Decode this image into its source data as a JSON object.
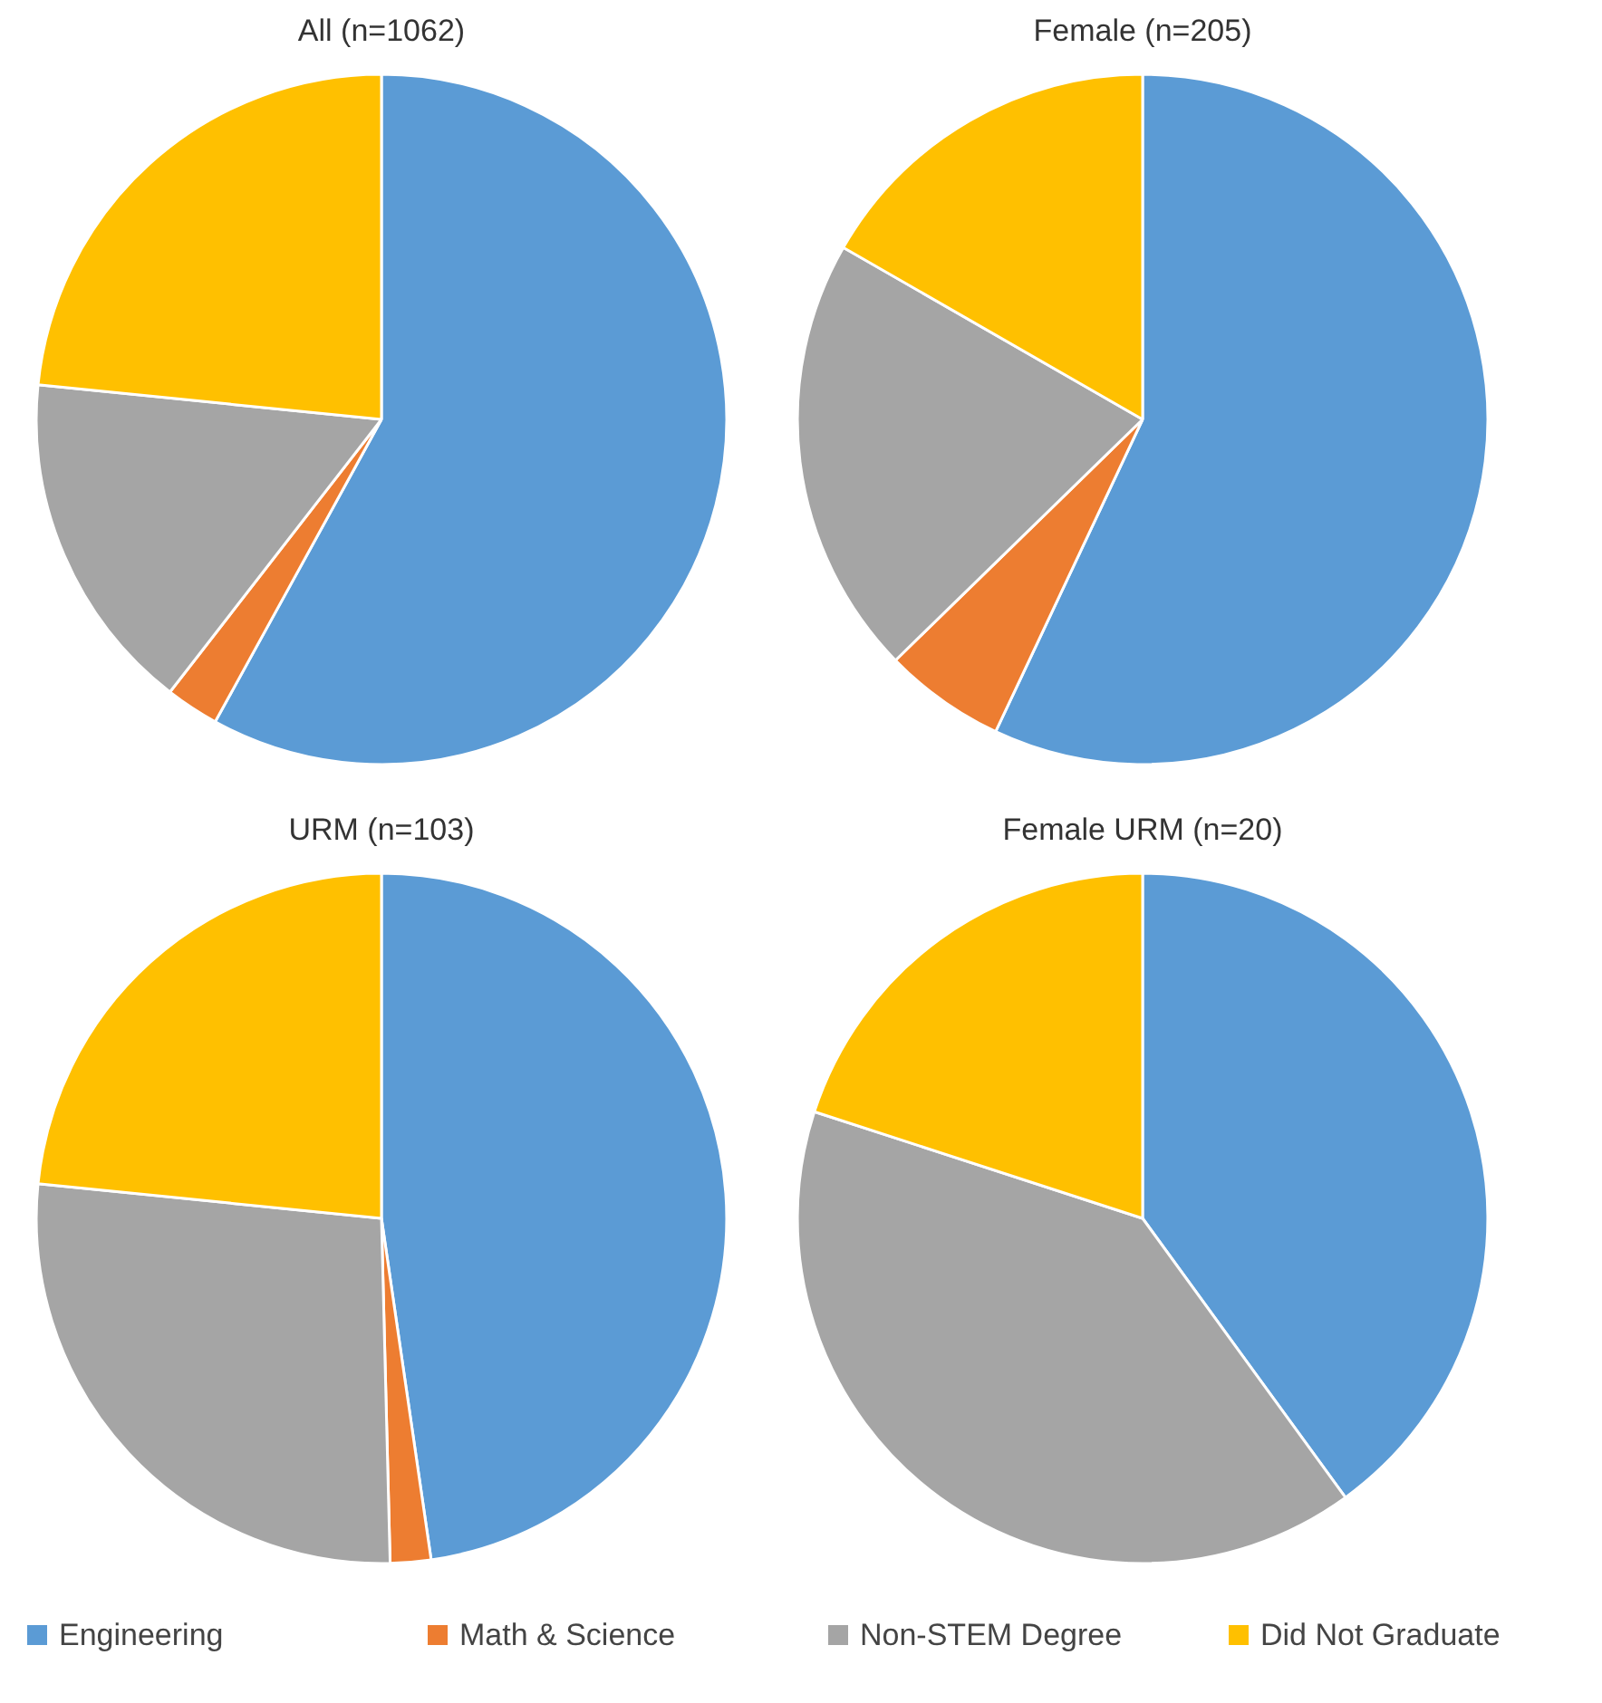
{
  "chart_data": [
    {
      "type": "pie",
      "title": "All (n=1062)",
      "categories": [
        "Engineering",
        "Math & Science",
        "Non-STEM Degree",
        "Did Not Graduate"
      ],
      "values": [
        58,
        2.5,
        16.1,
        23.4
      ],
      "colors": [
        "#5b9bd5",
        "#ed7d31",
        "#a5a5a5",
        "#ffc000"
      ],
      "legend": "bottom"
    },
    {
      "type": "pie",
      "title": "Female (n=205)",
      "categories": [
        null,
        null,
        null,
        null
      ],
      "values": [
        57,
        5.7,
        20.6,
        16.7
      ],
      "colors": [
        "#5b9bd5",
        "#ed7d31",
        "#a5a5a5",
        "#ffc000"
      ]
    },
    {
      "type": "pie",
      "title": "URM (n=103)",
      "categories": [
        null,
        null,
        null,
        null
      ],
      "values": [
        47.7,
        1.9,
        27,
        23.4
      ],
      "colors": [
        "#5b9bd5",
        "#ed7d31",
        "#a5a5a5",
        "#ffc000"
      ]
    },
    {
      "type": "pie",
      "title": "Female URM (n=20)",
      "categories": [
        null,
        null,
        null,
        null
      ],
      "values": [
        40,
        0,
        40,
        20
      ],
      "colors": [
        "#5b9bd5",
        "#ed7d31",
        "#a5a5a5",
        "#ffc000"
      ]
    }
  ]
}
